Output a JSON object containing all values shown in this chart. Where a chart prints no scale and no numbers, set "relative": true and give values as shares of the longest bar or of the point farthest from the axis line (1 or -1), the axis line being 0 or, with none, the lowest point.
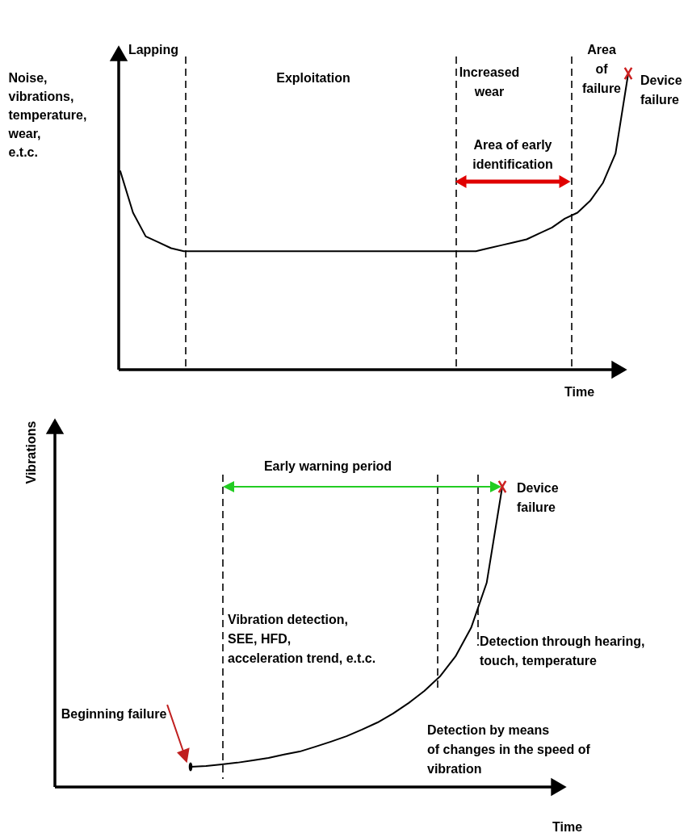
{
  "chart_data": [
    {
      "type": "line",
      "relative": true,
      "ylabel": "Noise,\nvibrations,\ntemperature,\nwear,\ne.t.c.",
      "xlabel": "Time",
      "categories": [
        null,
        null,
        null,
        null,
        null,
        null,
        null,
        null,
        null,
        null,
        null,
        null,
        null,
        null,
        null,
        null,
        null,
        null,
        null,
        null,
        null,
        null,
        null,
        null,
        null,
        null,
        null,
        null,
        null,
        null,
        null,
        null,
        null,
        null,
        null,
        null,
        null,
        null,
        null,
        null,
        null
      ],
      "series": [
        {
          "color": "#000000",
          "values": [
            0.67,
            0.53,
            0.45,
            0.43,
            0.41,
            0.4,
            0.4,
            0.4,
            0.4,
            0.4,
            0.4,
            0.4,
            0.4,
            0.4,
            0.4,
            0.4,
            0.4,
            0.4,
            0.4,
            0.4,
            0.4,
            0.4,
            0.4,
            0.4,
            0.4,
            0.4,
            0.4,
            0.4,
            0.4,
            0.41,
            0.42,
            0.43,
            0.44,
            0.46,
            0.48,
            0.51,
            0.53,
            0.57,
            0.63,
            0.73,
            1
          ]
        }
      ],
      "annotations": [
        "Lapping",
        "Exploitation",
        "Increased\nwear",
        "Area\nof\nfailure",
        "Device\nfailure",
        "Area of early\nidentification"
      ]
    },
    {
      "type": "line",
      "relative": true,
      "ylabel": "Vibrations",
      "xlabel": "Time",
      "categories": [
        null,
        null,
        null,
        null,
        null,
        null,
        null,
        null,
        null,
        null,
        null,
        null,
        null,
        null,
        null,
        null,
        null,
        null,
        null,
        null,
        null
      ],
      "series": [
        {
          "color": "#000000",
          "values": [
            0.067,
            0.07,
            0.075,
            0.081,
            0.089,
            0.097,
            0.108,
            0.118,
            0.134,
            0.151,
            0.169,
            0.191,
            0.215,
            0.245,
            0.28,
            0.32,
            0.368,
            0.435,
            0.53,
            0.68,
            1
          ]
        }
      ],
      "annotations": [
        "Early warning period",
        "Device\nfailure",
        "Vibration detection,\nSEE, HFD,\nacceleration trend, e.t.c.",
        "Detection through hearing,\ntouch, temperature",
        "Detection by means\nof changes in the speed of\nvibration",
        "Beginning failure"
      ]
    }
  ]
}
